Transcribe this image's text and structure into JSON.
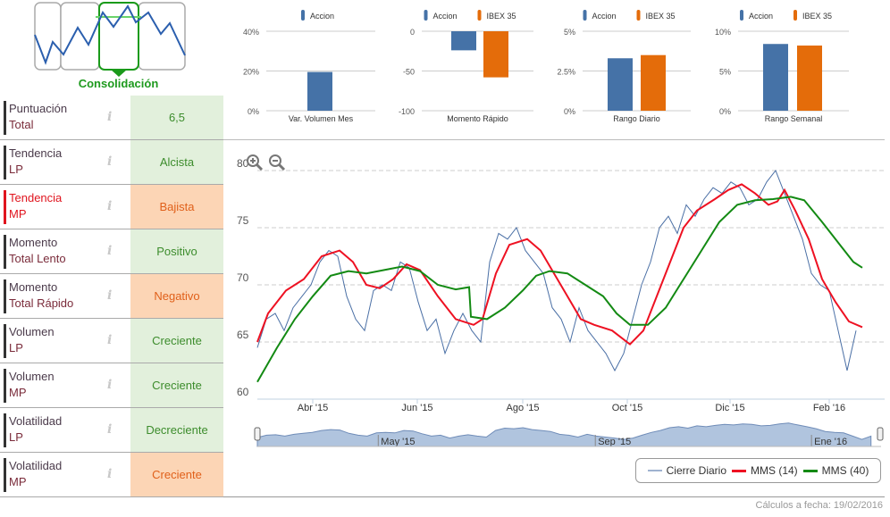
{
  "brand": {
    "label": "Consolidación"
  },
  "rows": [
    {
      "l1": "Puntuación",
      "l2": "Total",
      "value": "6,5",
      "status": "pos"
    },
    {
      "l1": "Tendencia",
      "l2": "LP",
      "value": "Alcista",
      "status": "pos"
    },
    {
      "l1": "Tendencia",
      "l2": "MP",
      "value": "Bajista",
      "status": "neg",
      "highlight": true
    },
    {
      "l1": "Momento",
      "l2": "Total Lento",
      "value": "Positivo",
      "status": "pos"
    },
    {
      "l1": "Momento",
      "l2": "Total Rápido",
      "value": "Negativo",
      "status": "neg"
    },
    {
      "l1": "Volumen",
      "l2": "LP",
      "value": "Creciente",
      "status": "pos"
    },
    {
      "l1": "Volumen",
      "l2": "MP",
      "value": "Creciente",
      "status": "pos"
    },
    {
      "l1": "Volatilidad",
      "l2": "LP",
      "value": "Decreciente",
      "status": "pos"
    },
    {
      "l1": "Volatilidad",
      "l2": "MP",
      "value": "Creciente",
      "status": "neg"
    }
  ],
  "info_glyph": "i",
  "colors": {
    "accion": "#4572a7",
    "ibex": "#e46c0a",
    "close": "#4a6fa5",
    "mms14": "#ee1122",
    "mms40": "#138a13"
  },
  "chart_data": [
    {
      "type": "bar",
      "title": "Var. Volumen Mes",
      "legend": [
        "Accion"
      ],
      "yticks": [
        "0%",
        "20%",
        "40%"
      ],
      "ylim": [
        0,
        40
      ],
      "values": [
        19.5
      ]
    },
    {
      "type": "bar",
      "title": "Momento Rápido",
      "legend": [
        "Accion",
        "IBEX 35"
      ],
      "yticks": [
        "-100",
        "-50",
        "0"
      ],
      "ylim": [
        -100,
        0
      ],
      "values": [
        -24,
        -58
      ]
    },
    {
      "type": "bar",
      "title": "Rango Diario",
      "legend": [
        "Accion",
        "IBEX 35"
      ],
      "yticks": [
        "0%",
        "2.5%",
        "5%"
      ],
      "ylim": [
        0,
        5
      ],
      "values": [
        3.3,
        3.5
      ]
    },
    {
      "type": "bar",
      "title": "Rango Semanal",
      "legend": [
        "Accion",
        "IBEX 35"
      ],
      "yticks": [
        "0%",
        "5%",
        "10%"
      ],
      "ylim": [
        0,
        10
      ],
      "values": [
        8.4,
        8.2
      ]
    },
    {
      "type": "line",
      "ylim": [
        60,
        80
      ],
      "yticks": [
        "60",
        "65",
        "70",
        "75",
        "80"
      ],
      "xticks": [
        "Abr '15",
        "Jun '15",
        "Ago '15",
        "Oct '15",
        "Dic '15",
        "Feb '16"
      ],
      "xtick_days": [
        31,
        89.5,
        148.5,
        207,
        264.5,
        320
      ],
      "navigator_labels": [
        "May '15",
        "Sep '15",
        "Ene '16"
      ],
      "navigator_days": [
        66,
        184.5,
        302.5
      ],
      "series": [
        {
          "name": "Cierre Diario",
          "step_days": 5,
          "values": [
            64.5,
            67,
            67.5,
            66,
            68,
            69,
            70,
            72,
            73,
            72.5,
            69,
            67,
            66,
            69.5,
            70,
            69.5,
            72,
            71.5,
            68.5,
            66,
            67,
            64,
            66,
            67.5,
            66,
            65,
            72,
            74.5,
            74,
            75,
            73,
            72,
            71,
            68,
            67,
            65,
            68,
            66,
            65,
            64,
            62.5,
            64,
            67,
            70,
            72,
            75,
            76,
            74.5,
            77,
            76,
            77.5,
            78.5,
            78,
            79,
            78.5,
            77,
            77.5,
            79,
            80,
            78,
            76,
            74,
            71,
            70,
            69.5,
            66,
            62.5,
            66
          ]
        },
        {
          "name": "MMS (14)",
          "days": [
            0,
            6,
            16,
            26,
            36,
            46,
            53.5,
            61,
            68.5,
            76,
            83.5,
            91,
            101,
            111,
            121,
            126,
            133.5,
            141,
            151,
            158.5,
            166,
            173.5,
            181,
            188.5,
            198.5,
            208.5,
            216,
            223.5,
            231,
            238.5,
            246,
            256,
            263.5,
            271,
            278.5,
            286,
            291,
            295,
            301,
            308.5,
            316,
            323.5,
            331,
            338.5
          ],
          "values": [
            65,
            67.5,
            69.5,
            70.5,
            72.5,
            73,
            72,
            70,
            69.7,
            70.5,
            71.8,
            71.3,
            69,
            67,
            66.5,
            67,
            71,
            73.5,
            74,
            73,
            71,
            69,
            67,
            66.5,
            66,
            64.8,
            66,
            69,
            72,
            75,
            76.5,
            77.5,
            78.3,
            78.8,
            78,
            77,
            77.3,
            78.3,
            76.5,
            74,
            70.5,
            68.5,
            66.8,
            66.3
          ]
        },
        {
          "name": "MMS (40)",
          "days": [
            0,
            11,
            21,
            31,
            41,
            51,
            61,
            71,
            81,
            91,
            101,
            111,
            118.5,
            119.5,
            128.5,
            138.5,
            148.5,
            156,
            163.5,
            173.5,
            183.5,
            193.5,
            201,
            208.5,
            218.5,
            228.5,
            238.5,
            248.5,
            258.5,
            268.5,
            278.5,
            288.5,
            298.5,
            306,
            316,
            326,
            333.5,
            338.5
          ],
          "values": [
            61.5,
            64.5,
            67,
            69,
            70.8,
            71.2,
            71,
            71.3,
            71.6,
            71.2,
            70,
            69.6,
            69.8,
            67.2,
            67,
            68,
            69.5,
            70.8,
            71.2,
            71,
            70,
            69,
            67.5,
            66.5,
            66.5,
            68,
            70.5,
            73,
            75.5,
            77,
            77.4,
            77.5,
            77.7,
            77.4,
            75.5,
            73.5,
            72,
            71.5
          ]
        }
      ]
    }
  ],
  "legend": [
    "Cierre Diario",
    "MMS (14)",
    "MMS (40)"
  ],
  "footer": "Cálculos a fecha: 19/02/2016"
}
